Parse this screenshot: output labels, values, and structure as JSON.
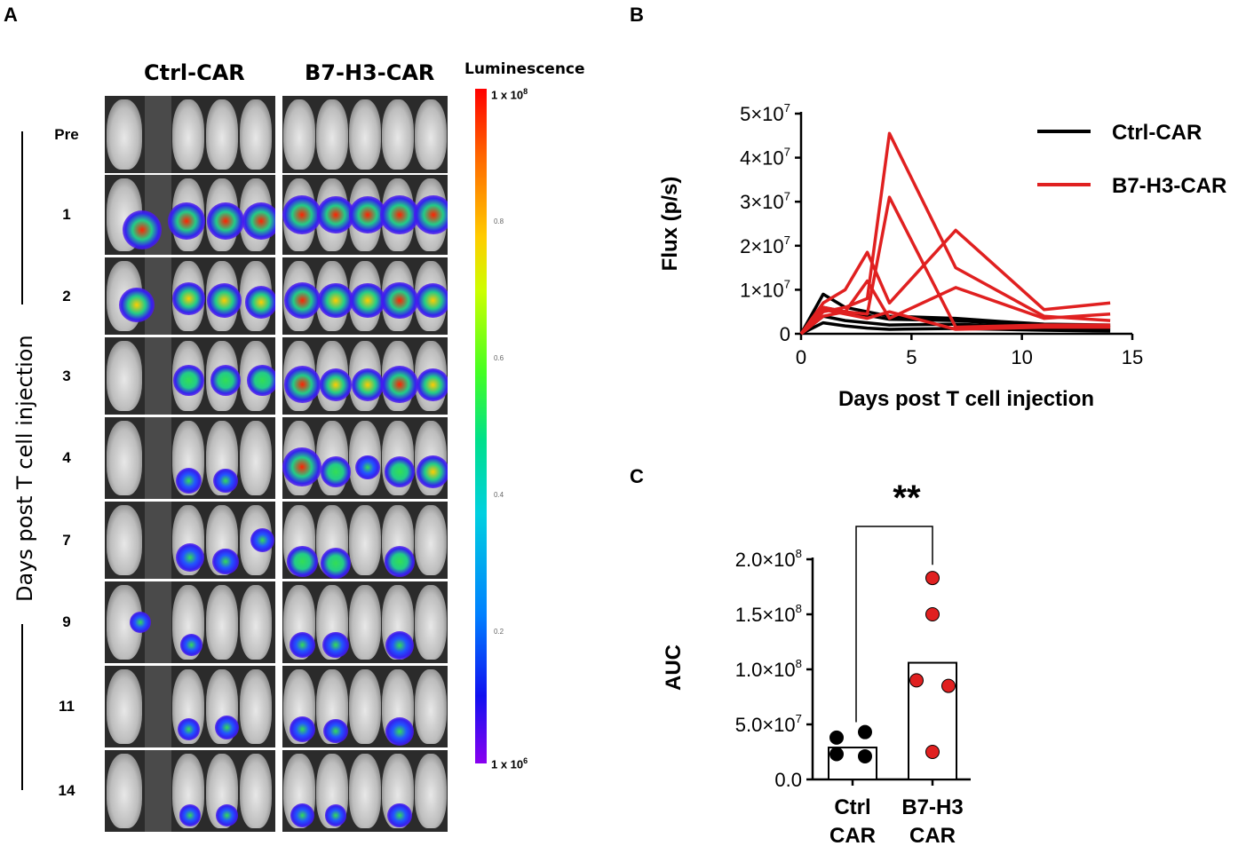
{
  "panels": {
    "a": "A",
    "b": "B",
    "c": "C"
  },
  "panel_a": {
    "group_labels": [
      "Ctrl-CAR",
      "B7-H3-CAR"
    ],
    "day_labels": [
      "Pre",
      "1",
      "2",
      "3",
      "4",
      "7",
      "9",
      "11",
      "14"
    ],
    "side_label": "Days post T cell injection",
    "scale": {
      "title": "Luminescence",
      "top_label": "1 x 10",
      "top_exp": "8",
      "bottom_label": "1 x 10",
      "bottom_exp": "6",
      "ticks": [
        "0.8",
        "0.6",
        "0.4",
        "0.2"
      ]
    }
  },
  "chart_data": [
    {
      "type": "line",
      "xlabel": "Days post T cell injection",
      "ylabel": "Flux (p/s)",
      "xlim": [
        0,
        15
      ],
      "ylim": [
        0,
        50000000
      ],
      "x_ticks": [
        "0",
        "5",
        "10",
        "15"
      ],
      "y_ticks": [
        {
          "value": 0,
          "base": "0",
          "exp": ""
        },
        {
          "value": 10000000,
          "base": "1×10",
          "exp": "7"
        },
        {
          "value": 20000000,
          "base": "2×10",
          "exp": "7"
        },
        {
          "value": 30000000,
          "base": "3×10",
          "exp": "7"
        },
        {
          "value": 40000000,
          "base": "4×10",
          "exp": "7"
        },
        {
          "value": 50000000,
          "base": "5×10",
          "exp": "7"
        }
      ],
      "legend": [
        {
          "name": "Ctrl-CAR",
          "color": "#000000"
        },
        {
          "name": "B7-H3-CAR",
          "color": "#e02020"
        }
      ],
      "series": [
        {
          "name": "Ctrl-CAR",
          "color": "#000000",
          "x": [
            0,
            1,
            2,
            3,
            4,
            7,
            9,
            11,
            14
          ],
          "values": [
            0,
            9000000,
            6000000,
            5000000,
            4000000,
            3500000,
            2800000,
            2200000,
            2000000
          ]
        },
        {
          "name": "Ctrl-CAR",
          "color": "#000000",
          "x": [
            0,
            1,
            2,
            3,
            4,
            7,
            9,
            11,
            14
          ],
          "values": [
            0,
            6000000,
            5000000,
            4200000,
            3300000,
            3000000,
            2400000,
            1800000,
            1500000
          ]
        },
        {
          "name": "Ctrl-CAR",
          "color": "#000000",
          "x": [
            0,
            1,
            2,
            3,
            4,
            7,
            9,
            11,
            14
          ],
          "values": [
            0,
            4000000,
            3000000,
            2500000,
            2000000,
            2200000,
            1800000,
            1300000,
            1000000
          ]
        },
        {
          "name": "Ctrl-CAR",
          "color": "#000000",
          "x": [
            0,
            1,
            2,
            3,
            4,
            7,
            9,
            11,
            14
          ],
          "values": [
            0,
            2500000,
            1800000,
            1300000,
            1000000,
            1200000,
            1000000,
            800000,
            600000
          ]
        },
        {
          "name": "B7-H3-CAR",
          "color": "#e02020",
          "x": [
            0,
            1,
            2,
            3,
            4,
            7,
            11,
            14
          ],
          "values": [
            0,
            5000000,
            6000000,
            8000000,
            45500000,
            15000000,
            4000000,
            3000000
          ]
        },
        {
          "name": "B7-H3-CAR",
          "color": "#e02020",
          "x": [
            0,
            1,
            2,
            3,
            4,
            7,
            11,
            14
          ],
          "values": [
            0,
            6000000,
            5000000,
            4500000,
            31000000,
            1500000,
            2000000,
            2000000
          ]
        },
        {
          "name": "B7-H3-CAR",
          "color": "#e02020",
          "x": [
            0,
            1,
            2,
            3,
            4,
            7,
            11,
            14
          ],
          "values": [
            0,
            7000000,
            10000000,
            18500000,
            7000000,
            23500000,
            5500000,
            7000000
          ]
        },
        {
          "name": "B7-H3-CAR",
          "color": "#e02020",
          "x": [
            0,
            1,
            2,
            3,
            4,
            7,
            11,
            14
          ],
          "values": [
            0,
            4000000,
            5000000,
            12000000,
            3500000,
            10500000,
            3500000,
            4500000
          ]
        },
        {
          "name": "B7-H3-CAR",
          "color": "#e02020",
          "x": [
            0,
            1,
            2,
            3,
            4,
            7,
            11,
            14
          ],
          "values": [
            0,
            5500000,
            4500000,
            3500000,
            5000000,
            1000000,
            1500000,
            1500000
          ]
        }
      ]
    },
    {
      "type": "bar",
      "ylabel": "AUC",
      "ylim": [
        0,
        200000000
      ],
      "categories": [
        {
          "line1": "Ctrl",
          "line2": "CAR"
        },
        {
          "line1": "B7-H3",
          "line2": "CAR"
        }
      ],
      "bar_values": [
        29000000,
        106000000
      ],
      "points": [
        {
          "category": 0,
          "values": [
            38000000,
            43000000,
            23000000,
            21000000
          ],
          "color": "#000000"
        },
        {
          "category": 1,
          "values": [
            183000000,
            150000000,
            90000000,
            85000000,
            25000000
          ],
          "color": "#e02020"
        }
      ],
      "y_ticks": [
        {
          "value": 0,
          "base": "0.0",
          "exp": ""
        },
        {
          "value": 50000000,
          "base": "5.0×10",
          "exp": "7"
        },
        {
          "value": 100000000,
          "base": "1.0×10",
          "exp": "8"
        },
        {
          "value": 150000000,
          "base": "1.5×10",
          "exp": "8"
        },
        {
          "value": 200000000,
          "base": "2.0×10",
          "exp": "8"
        }
      ],
      "significance": "**"
    }
  ]
}
